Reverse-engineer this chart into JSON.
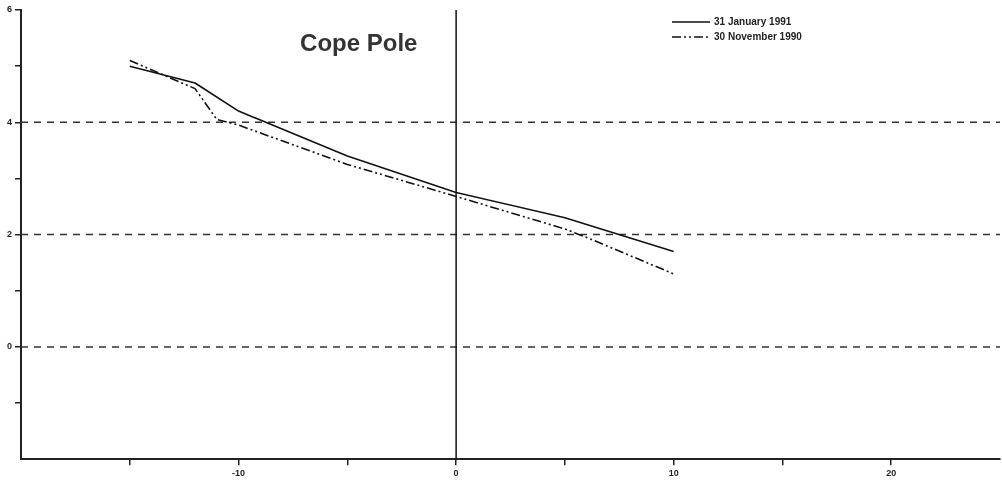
{
  "chart_data": {
    "type": "line",
    "title": "Cope Pole",
    "series": [
      {
        "name": "31 January 1991",
        "color": "#111111",
        "line_style": "solid",
        "x": [
          -15,
          -12,
          -10,
          -5,
          0,
          5,
          10
        ],
        "values": [
          5.0,
          4.7,
          4.2,
          3.4,
          2.75,
          2.3,
          1.7
        ]
      },
      {
        "name": "30 November 1990",
        "color": "#111111",
        "line_style": "dashed",
        "x": [
          -15,
          -12,
          -11,
          -10,
          -5,
          0,
          5,
          6,
          10
        ],
        "values": [
          5.1,
          4.6,
          4.05,
          3.95,
          3.25,
          2.68,
          2.1,
          1.95,
          1.3
        ]
      }
    ],
    "xlim": [
      -20,
      25
    ],
    "xticks": [
      {
        "value": -15,
        "label": null
      },
      "-10",
      {
        "value": -5,
        "label": null
      },
      0,
      {
        "value": 5,
        "label": null
      },
      10,
      {
        "value": 15,
        "label": null
      },
      20
    ],
    "ylim": [
      -2,
      6
    ],
    "yticks": [
      {
        "value": -1,
        "label": null
      },
      0,
      {
        "value": 1,
        "label": null
      },
      2,
      {
        "value": 3,
        "label": null
      },
      4,
      {
        "value": 5,
        "label": null
      },
      6
    ],
    "ref_lines": [
      {
        "axis": "y",
        "value": 0,
        "line_style": "dashed",
        "color": "#333333"
      },
      {
        "axis": "y",
        "value": 2,
        "line_style": "dashed",
        "color": "#333333"
      },
      {
        "axis": "y",
        "value": 4,
        "line_style": "dashed",
        "color": "#333333"
      },
      {
        "axis": "x",
        "value": 0,
        "line_style": "solid",
        "color": "#111111"
      }
    ],
    "grid": false,
    "legend": "top right",
    "marker": "none"
  }
}
